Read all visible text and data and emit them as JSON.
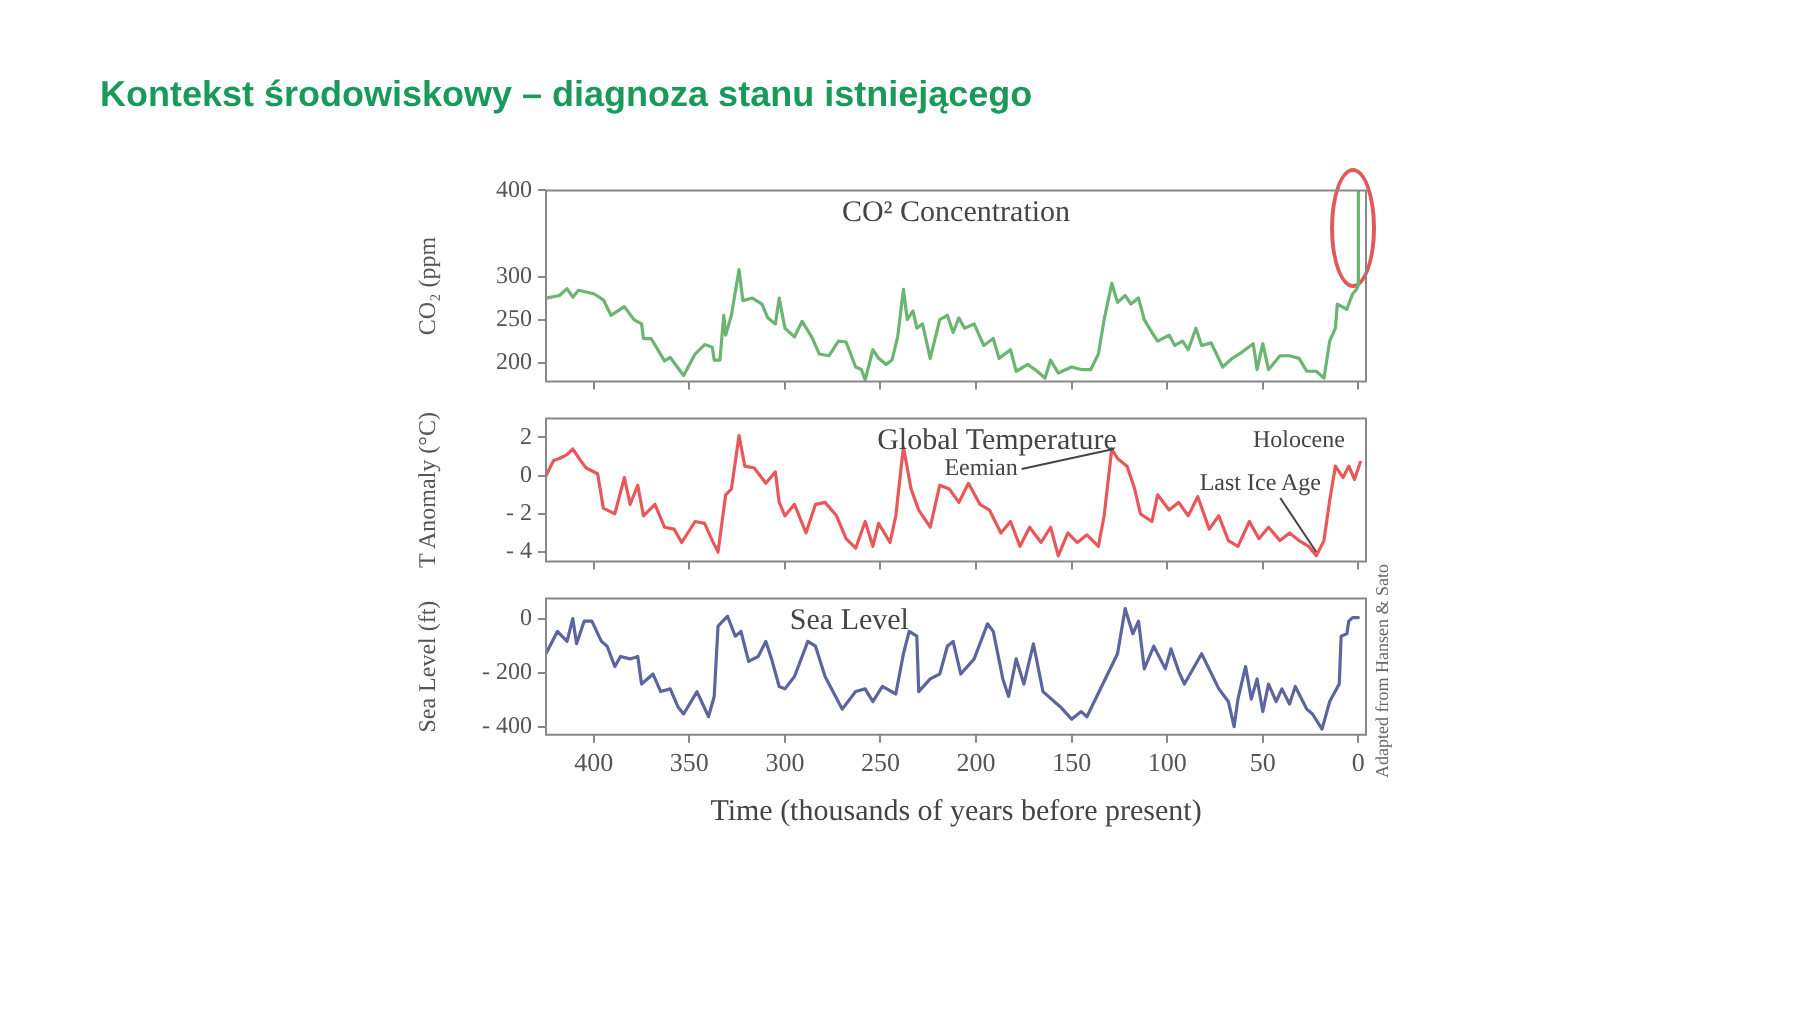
{
  "chart_data": [
    {
      "type": "line",
      "title": "CO² Concentration",
      "ylabel": "CO₂ (ppm",
      "annotations": [
        "Kontekst środowiskowy – diagnoza stanu istniejącego"
      ],
      "xlim": [
        425,
        -4
      ],
      "xticks": [
        400,
        350,
        300,
        250,
        200,
        150,
        100,
        50,
        0
      ],
      "ylim": [
        178,
        400
      ],
      "yticks": [
        200,
        250,
        300,
        400
      ],
      "tick_labels": "y",
      "x": [
        425,
        418,
        414,
        411,
        408,
        400,
        395,
        391,
        384,
        379,
        375,
        374,
        370,
        363,
        360,
        353,
        347,
        342,
        338,
        337,
        334,
        332,
        331,
        328,
        324,
        322,
        317,
        312,
        309,
        305,
        303,
        300,
        295,
        291,
        286,
        282,
        277,
        272,
        268,
        263,
        260,
        258,
        254,
        251,
        247,
        244,
        241,
        238,
        236,
        233,
        231,
        228,
        224,
        219,
        215,
        212,
        209,
        206,
        201,
        196,
        191,
        188,
        182,
        179,
        173,
        168,
        164,
        161,
        157,
        150,
        145,
        140,
        136,
        133,
        129,
        126,
        122,
        119,
        115,
        112,
        108,
        105,
        99,
        96,
        92,
        89,
        85,
        82,
        77,
        71,
        66,
        61,
        55,
        53,
        50,
        47,
        41,
        36,
        31,
        27,
        22,
        18,
        15,
        12,
        11,
        6,
        3,
        1,
        0,
        0
      ],
      "series": [
        {
          "color": "#6ab56f",
          "values": [
            275,
            278,
            286,
            276,
            284,
            280,
            273,
            255,
            265,
            250,
            245,
            228,
            228,
            202,
            206,
            185,
            210,
            221,
            218,
            203,
            203,
            255,
            232,
            255,
            308,
            272,
            275,
            268,
            252,
            245,
            275,
            240,
            230,
            248,
            230,
            210,
            208,
            225,
            224,
            195,
            192,
            180,
            215,
            205,
            198,
            203,
            230,
            285,
            250,
            260,
            240,
            245,
            205,
            250,
            255,
            235,
            252,
            240,
            245,
            220,
            228,
            205,
            215,
            190,
            198,
            190,
            182,
            203,
            188,
            195,
            192,
            192,
            210,
            250,
            292,
            270,
            278,
            268,
            275,
            250,
            235,
            225,
            232,
            220,
            225,
            215,
            240,
            220,
            223,
            195,
            205,
            212,
            222,
            192,
            222,
            192,
            208,
            208,
            205,
            190,
            190,
            182,
            225,
            240,
            268,
            262,
            280,
            285,
            290,
            400
          ]
        }
      ]
    },
    {
      "type": "line",
      "title": "Global Temperature",
      "ylabel": "T Anomaly (°C)",
      "annotations": [
        {
          "text": "Eemian",
          "x": 128,
          "y": 1.4
        },
        {
          "text": "Holocene",
          "x": 6,
          "y": 0.6
        },
        {
          "text": "Last Ice Age",
          "x": 22,
          "y": -4
        }
      ],
      "xlim": [
        425,
        -4
      ],
      "xticks": [
        400,
        350,
        300,
        250,
        200,
        150,
        100,
        50,
        0
      ],
      "ylim": [
        -4.5,
        3
      ],
      "yticks": [
        {
          "value": -4,
          "label": "- 4"
        },
        {
          "value": -2,
          "label": "- 2"
        },
        0,
        2
      ],
      "tick_labels": "y",
      "x": [
        425,
        421,
        418,
        414,
        411,
        407,
        404,
        398,
        395,
        389,
        384,
        381,
        377,
        374,
        368,
        363,
        358,
        354,
        347,
        342,
        338,
        335,
        331,
        328,
        324,
        321,
        316,
        310,
        305,
        303,
        300,
        295,
        289,
        284,
        279,
        273,
        268,
        263,
        258,
        254,
        251,
        245,
        242,
        238,
        234,
        230,
        224,
        219,
        214,
        209,
        204,
        198,
        193,
        187,
        182,
        177,
        172,
        166,
        161,
        157,
        152,
        147,
        142,
        136,
        133,
        129,
        126,
        121,
        117,
        114,
        108,
        105,
        99,
        94,
        89,
        84,
        78,
        73,
        68,
        63,
        57,
        52,
        47,
        41,
        36,
        31,
        26,
        22,
        18,
        15,
        12,
        8,
        5,
        2,
        -1
      ],
      "series": [
        {
          "color": "#e8585a",
          "values": [
            0,
            0.8,
            0.9,
            1.1,
            1.4,
            0.8,
            0.4,
            0.1,
            -1.7,
            -2,
            -0.1,
            -1.5,
            -0.5,
            -2.1,
            -1.5,
            -2.7,
            -2.8,
            -3.5,
            -2.4,
            -2.5,
            -3.4,
            -4,
            -1,
            -0.7,
            2.1,
            0.5,
            0.4,
            -0.4,
            0.2,
            -1.4,
            -2.1,
            -1.5,
            -3,
            -1.5,
            -1.4,
            -2.1,
            -3.3,
            -3.8,
            -2.4,
            -3.7,
            -2.5,
            -3.5,
            -2.1,
            1.5,
            -0.7,
            -1.8,
            -2.7,
            -0.5,
            -0.7,
            -1.4,
            -0.4,
            -1.5,
            -1.8,
            -3,
            -2.4,
            -3.7,
            -2.7,
            -3.5,
            -2.7,
            -4.2,
            -3,
            -3.5,
            -3.1,
            -3.7,
            -2.1,
            1.4,
            0.9,
            0.5,
            -0.7,
            -2,
            -2.4,
            -1,
            -1.8,
            -1.4,
            -2.1,
            -1.1,
            -2.8,
            -2.1,
            -3.4,
            -3.7,
            -2.4,
            -3.3,
            -2.7,
            -3.4,
            -3,
            -3.4,
            -3.7,
            -4.2,
            -3.4,
            -1.3,
            0.5,
            -0.1,
            0.5,
            -0.2,
            0.7
          ]
        }
      ]
    },
    {
      "type": "line",
      "title": "Sea Level",
      "ylabel": "Sea Level (ft)",
      "xlabel": "Time (thousands of years before present)",
      "annotations": [
        "Adapted from Hansen & Sato"
      ],
      "xlim": [
        425,
        -4
      ],
      "xticks": [
        400,
        350,
        300,
        250,
        200,
        150,
        100,
        50,
        0
      ],
      "ylim": [
        -430,
        75
      ],
      "yticks": [
        {
          "value": -400,
          "label": "- 400"
        },
        {
          "value": -200,
          "label": "- 200"
        },
        0
      ],
      "x": [
        425,
        419,
        414,
        411,
        409,
        405,
        401,
        396,
        393,
        389,
        386,
        381,
        377,
        375,
        369,
        365,
        360,
        356,
        353,
        346,
        340,
        337,
        335,
        330,
        326,
        323,
        319,
        314,
        310,
        307,
        303,
        300,
        295,
        288,
        284,
        279,
        270,
        263,
        258,
        254,
        249,
        242,
        238,
        235,
        231,
        230,
        224,
        219,
        215,
        212,
        208,
        201,
        194,
        191,
        186,
        183,
        179,
        175,
        170,
        165,
        156,
        150,
        145,
        142,
        126,
        122,
        118,
        115,
        112,
        107,
        101,
        98,
        94,
        91,
        82,
        73,
        68,
        65,
        63,
        59,
        56,
        53,
        50,
        47,
        43,
        40,
        36,
        33,
        27,
        24,
        19,
        15,
        10,
        9,
        6,
        5,
        3,
        0
      ],
      "series": [
        {
          "color": "#5c659e",
          "values": [
            -130,
            -47,
            -84,
            0,
            -93,
            -9,
            -9,
            -84,
            -102,
            -177,
            -140,
            -149,
            -140,
            -242,
            -205,
            -270,
            -260,
            -326,
            -353,
            -270,
            -363,
            -288,
            -28,
            9,
            -65,
            -47,
            -158,
            -140,
            -84,
            -149,
            -251,
            -260,
            -214,
            -84,
            -102,
            -214,
            -335,
            -270,
            -260,
            -307,
            -251,
            -279,
            -130,
            -47,
            -65,
            -270,
            -223,
            -205,
            -102,
            -84,
            -205,
            -149,
            -19,
            -47,
            -223,
            -288,
            -149,
            -242,
            -93,
            -270,
            -326,
            -372,
            -344,
            -363,
            -130,
            37,
            -56,
            -9,
            -186,
            -102,
            -186,
            -112,
            -195,
            -242,
            -130,
            -260,
            -307,
            -400,
            -298,
            -177,
            -298,
            -223,
            -344,
            -242,
            -307,
            -260,
            -316,
            -251,
            -335,
            -353,
            -409,
            -307,
            -242,
            -65,
            -56,
            -9,
            4,
            4
          ]
        }
      ]
    }
  ]
}
